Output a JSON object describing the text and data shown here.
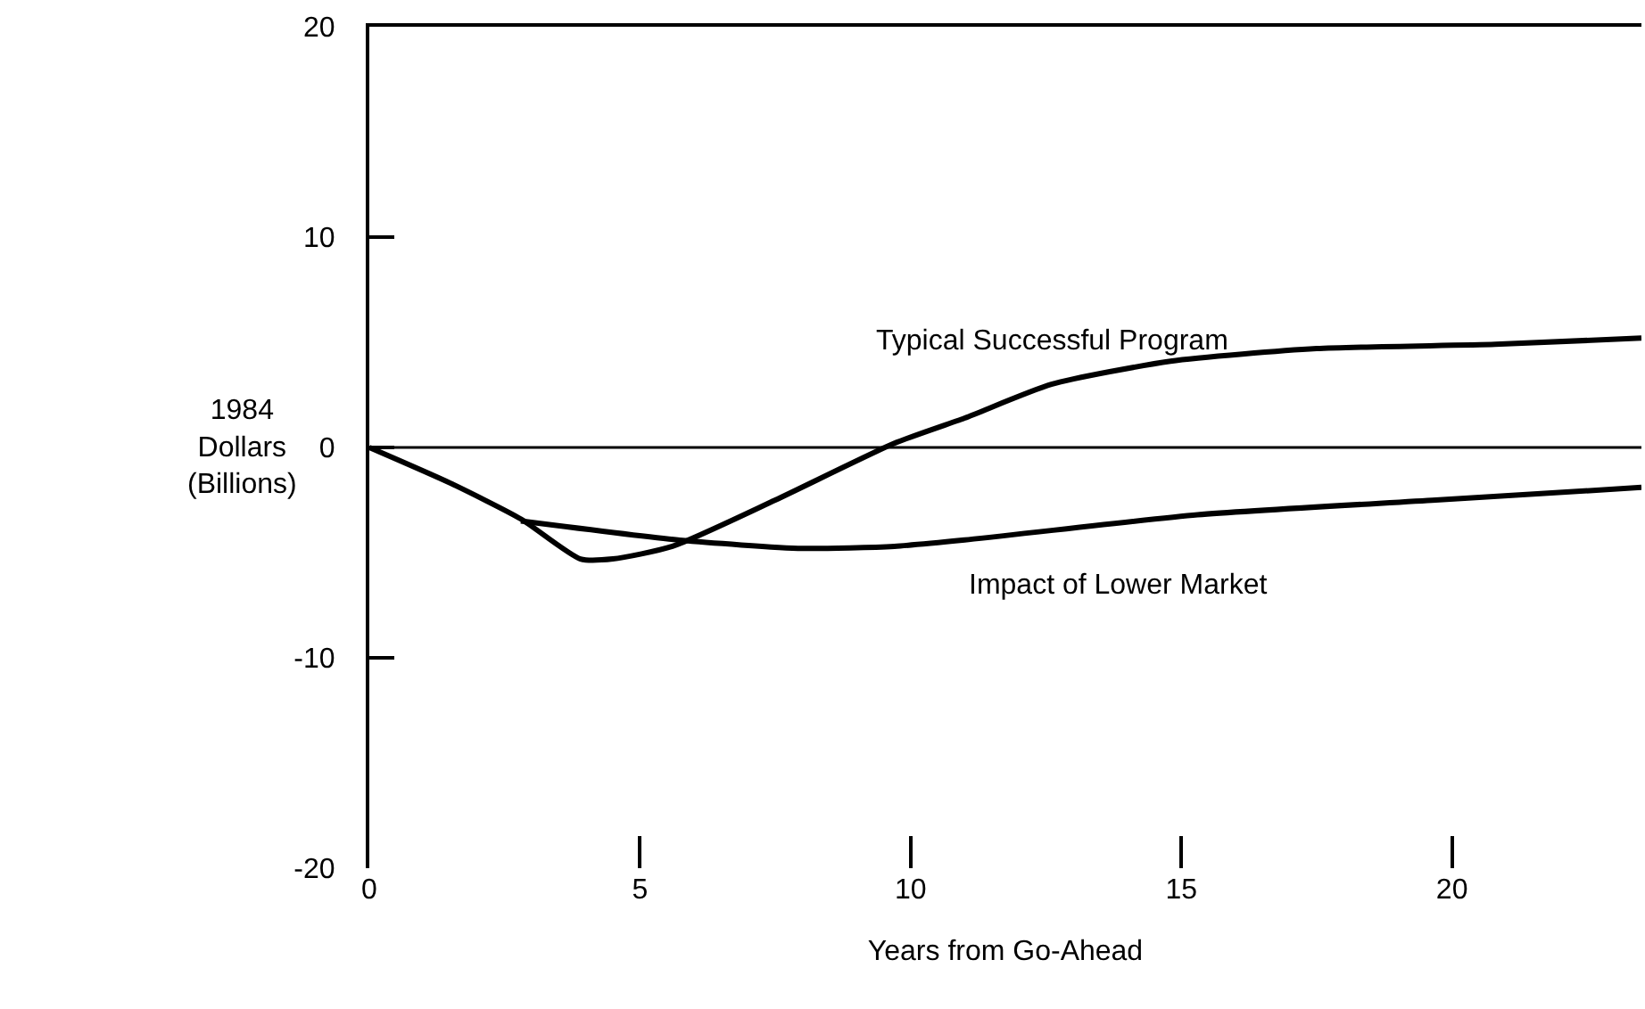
{
  "chart_data": {
    "type": "line",
    "xlabel": "Years from Go-Ahead",
    "ylabel": "1984\nDollars\n(Billions)",
    "series": [
      {
        "name": "Typical Successful Program",
        "color": "#000000",
        "x": [
          0,
          1.5,
          2.8,
          3.9,
          4.5,
          5.6,
          7.5,
          9.7,
          11.0,
          12.6,
          14.8,
          17.5,
          20.8,
          23.5
        ],
        "values": [
          0,
          -1.7,
          -3.4,
          -5.3,
          -5.3,
          -4.7,
          -2.5,
          0.2,
          1.4,
          3.0,
          4.1,
          4.7,
          4.9,
          5.2
        ]
      },
      {
        "name": "Impact of Lower Market",
        "color": "#000000",
        "x": [
          2.8,
          5.7,
          8.0,
          9.7,
          11.0,
          15.3,
          19.7,
          23.5
        ],
        "values": [
          -3.5,
          -4.4,
          -4.8,
          -4.7,
          -4.4,
          -3.2,
          -2.5,
          -1.9
        ]
      }
    ],
    "xlim": [
      0,
      23.5
    ],
    "xticks": [
      0,
      5,
      10,
      15,
      20
    ],
    "ylim": [
      -20,
      20
    ],
    "yticks": [
      -20,
      -10,
      0,
      10,
      20
    ],
    "ref_lines": [
      {
        "axis": "y",
        "value": 0,
        "color": "#000000"
      }
    ],
    "grid": false,
    "legend": false,
    "marker": "none",
    "line_style": "solid"
  }
}
